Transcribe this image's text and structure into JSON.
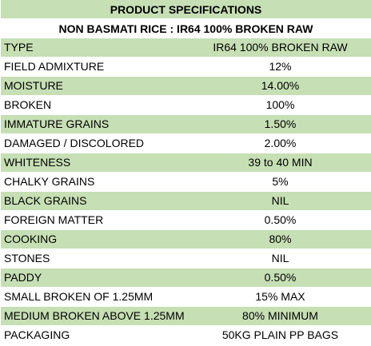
{
  "title": "PRODUCT SPECIFICATIONS",
  "subtitle": "NON BASMATI RICE : IR64 100% BROKEN RAW",
  "colors": {
    "shade": "#c6dfb4",
    "plain": "#ffffff"
  },
  "rows": [
    {
      "label": "TYPE",
      "value": "IR64 100% BROKEN RAW"
    },
    {
      "label": "FIELD ADMIXTURE",
      "value": "12%"
    },
    {
      "label": "MOISTURE",
      "value": "14.00%"
    },
    {
      "label": "BROKEN",
      "value": "100%"
    },
    {
      "label": "IMMATURE GRAINS",
      "value": "1.50%"
    },
    {
      "label": "DAMAGED / DISCOLORED",
      "value": "2.00%"
    },
    {
      "label": "WHITENESS",
      "value": "39 to 40 MIN"
    },
    {
      "label": "CHALKY GRAINS",
      "value": "5%"
    },
    {
      "label": "BLACK GRAINS",
      "value": "NIL"
    },
    {
      "label": "FOREIGN MATTER",
      "value": "0.50%"
    },
    {
      "label": "COOKING",
      "value": "80%"
    },
    {
      "label": "STONES",
      "value": "NIL"
    },
    {
      "label": "PADDY",
      "value": "0.50%"
    },
    {
      "label": "SMALL BROKEN OF 1.25MM",
      "value": "15% MAX"
    },
    {
      "label": "MEDIUM BROKEN ABOVE 1.25MM",
      "value": "80% MINIMUM"
    },
    {
      "label": "PACKAGING",
      "value": "50KG PLAIN PP BAGS"
    }
  ]
}
